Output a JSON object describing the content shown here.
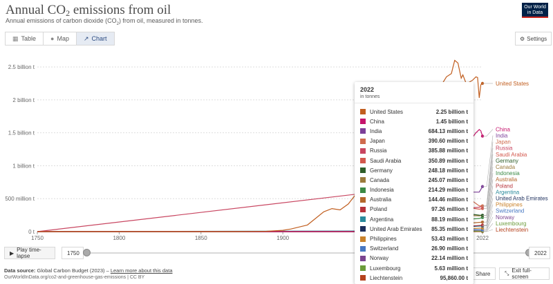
{
  "header": {
    "title_pre": "Annual CO",
    "title_sub": "2",
    "title_post": " emissions from oil",
    "subtitle_pre": "Annual emissions of carbon dioxide (CO",
    "subtitle_sub": "2",
    "subtitle_post": ") from oil, measured in tonnes.",
    "logo_line1": "Our World",
    "logo_line2": "in Data"
  },
  "tabs": [
    {
      "label": "Table",
      "icon": "table-icon"
    },
    {
      "label": "Map",
      "icon": "globe-icon"
    },
    {
      "label": "Chart",
      "icon": "line-chart-icon"
    }
  ],
  "settings_label": "Settings",
  "timeline": {
    "play_label": "Play time-lapse",
    "start_year": "1750",
    "end_year": "2022",
    "start_fraction": 0,
    "end_fraction": 1
  },
  "footer": {
    "source_bold": "Data source:",
    "source_text": " Global Carbon Budget (2023) – ",
    "source_link": "Learn more about this data",
    "url_line": "OurWorldInData.org/co2-and-greenhouse-gas-emissions | CC BY",
    "share_label": "Share",
    "exit_label": "Exit full-screen"
  },
  "tooltip": {
    "year": "2022",
    "unit": "in tonnes",
    "rows": [
      {
        "name": "United States",
        "value": "2.25 billion t",
        "color": "#c15e1f"
      },
      {
        "name": "China",
        "value": "1.45 billion t",
        "color": "#c5146c"
      },
      {
        "name": "India",
        "value": "684.13 million t",
        "color": "#7c3f98"
      },
      {
        "name": "Japan",
        "value": "390.60 million t",
        "color": "#cf6a4d"
      },
      {
        "name": "Russia",
        "value": "385.88 million t",
        "color": "#c84560"
      },
      {
        "name": "Saudi Arabia",
        "value": "350.89 million t",
        "color": "#d3584d"
      },
      {
        "name": "Germany",
        "value": "248.18 million t",
        "color": "#2f5e2a"
      },
      {
        "name": "Canada",
        "value": "245.07 million t",
        "color": "#9b7b3c"
      },
      {
        "name": "Indonesia",
        "value": "214.29 million t",
        "color": "#3b8a45"
      },
      {
        "name": "Australia",
        "value": "144.46 million t",
        "color": "#b4672c"
      },
      {
        "name": "Poland",
        "value": "97.26 million t",
        "color": "#b7333a"
      },
      {
        "name": "Argentina",
        "value": "88.19 million t",
        "color": "#2a8a9c"
      },
      {
        "name": "United Arab Emirates",
        "value": "85.35 million t",
        "color": "#1c2e5c"
      },
      {
        "name": "Philippines",
        "value": "53.43 million t",
        "color": "#c9822b"
      },
      {
        "name": "Switzerland",
        "value": "26.90 million t",
        "color": "#4777c2"
      },
      {
        "name": "Norway",
        "value": "22.14 million t",
        "color": "#7b4590"
      },
      {
        "name": "Luxembourg",
        "value": "5.63 million t",
        "color": "#6b9b3a"
      },
      {
        "name": "Liechtenstein",
        "value": "95,860.00 t",
        "color": "#b5421d"
      }
    ]
  },
  "chart_data": {
    "type": "line",
    "xlim": [
      1750,
      2022
    ],
    "ylim": [
      0,
      2700000000
    ],
    "x_ticks": [
      1750,
      1800,
      1850,
      1900,
      2022
    ],
    "x_tick_labels": [
      "1750",
      "1800",
      "1850",
      "1900",
      "2022"
    ],
    "y_ticks": [
      0,
      500000000,
      1000000000,
      1500000000,
      2000000000,
      2500000000
    ],
    "y_tick_labels": [
      "0 t",
      "500 million t",
      "1 billion t",
      "1.5 billion t",
      "2 billion t",
      "2.5 billion t"
    ],
    "grid": true,
    "series": [
      {
        "name": "United States",
        "color": "#c15e1f",
        "label_color": "#c15e1f",
        "x": [
          1750,
          1860,
          1870,
          1880,
          1890,
          1900,
          1905,
          1910,
          1915,
          1920,
          1925,
          1930,
          1935,
          1940,
          1945,
          1948,
          1950,
          1953,
          1955,
          1958,
          1960,
          1963,
          1965,
          1968,
          1970,
          1973,
          1975,
          1978,
          1980,
          1982,
          1985,
          1988,
          1990,
          1993,
          1995,
          1998,
          2000,
          2003,
          2005,
          2007,
          2009,
          2010,
          2012,
          2014,
          2016,
          2018,
          2019,
          2020,
          2021,
          2022
        ],
        "y": [
          0,
          0,
          0,
          2000000,
          5000000,
          20000000,
          40000000,
          70000000,
          100000000,
          200000000,
          300000000,
          350000000,
          330000000,
          420000000,
          580000000,
          700000000,
          740000000,
          850000000,
          930000000,
          1010000000,
          1080000000,
          1170000000,
          1260000000,
          1420000000,
          1540000000,
          1750000000,
          1700000000,
          1900000000,
          1850000000,
          1680000000,
          1720000000,
          1900000000,
          2050000000,
          2100000000,
          2150000000,
          2270000000,
          2350000000,
          2400000000,
          2600000000,
          2560000000,
          2330000000,
          2380000000,
          2250000000,
          2270000000,
          2300000000,
          2350000000,
          2340000000,
          2030000000,
          2230000000,
          2250000000
        ]
      },
      {
        "name": "China",
        "color": "#c5146c",
        "label_color": "#c5146c",
        "x": [
          1750,
          1950,
          1960,
          1970,
          1975,
          1980,
          1985,
          1990,
          1995,
          2000,
          2005,
          2010,
          2015,
          2018,
          2020,
          2021,
          2022
        ],
        "y": [
          0,
          0,
          5000000,
          30000000,
          100000000,
          200000000,
          220000000,
          250000000,
          400000000,
          600000000,
          820000000,
          1150000000,
          1400000000,
          1500000000,
          1550000000,
          1530000000,
          1450000000
        ]
      },
      {
        "name": "India",
        "color": "#7c3f98",
        "label_color": "#7c3f98",
        "x": [
          1750,
          1950,
          1970,
          1980,
          1990,
          2000,
          2010,
          2015,
          2020,
          2021,
          2022
        ],
        "y": [
          0,
          0,
          40000000,
          80000000,
          150000000,
          300000000,
          450000000,
          600000000,
          600000000,
          640000000,
          684130000
        ]
      },
      {
        "name": "Japan",
        "color": "#cf6a4d",
        "label_color": "#cf6a4d",
        "x": [
          1750,
          1950,
          1960,
          1965,
          1970,
          1973,
          1980,
          1990,
          2000,
          2005,
          2010,
          2015,
          2020,
          2022
        ],
        "y": [
          0,
          0,
          100000000,
          250000000,
          500000000,
          620000000,
          560000000,
          600000000,
          660000000,
          640000000,
          560000000,
          480000000,
          390000000,
          390600000
        ]
      },
      {
        "name": "Russia",
        "color": "#c84560",
        "label_color": "#c84560",
        "x": [
          1750,
          1990,
          1993,
          1998,
          2005,
          2010,
          2015,
          2020,
          2022
        ],
        "y": [
          0,
          700000000,
          450000000,
          320000000,
          330000000,
          340000000,
          360000000,
          370000000,
          385880000
        ]
      },
      {
        "name": "Saudi Arabia",
        "color": "#d3584d",
        "label_color": "#d3584d",
        "x": [
          1750,
          1950,
          1970,
          1980,
          1990,
          2000,
          2010,
          2015,
          2020,
          2022
        ],
        "y": [
          0,
          0,
          20000000,
          80000000,
          130000000,
          180000000,
          300000000,
          360000000,
          340000000,
          350890000
        ]
      },
      {
        "name": "Germany",
        "color": "#2f5e2a",
        "label_color": "#2f5e2a",
        "x": [
          1750,
          1950,
          1960,
          1970,
          1980,
          1990,
          2000,
          2010,
          2020,
          2022
        ],
        "y": [
          0,
          0,
          100000000,
          330000000,
          400000000,
          320000000,
          310000000,
          280000000,
          250000000,
          248180000
        ]
      },
      {
        "name": "Canada",
        "color": "#9b7b3c",
        "label_color": "#9b7b3c",
        "x": [
          1750,
          1950,
          1960,
          1970,
          1980,
          1990,
          2000,
          2010,
          2020,
          2022
        ],
        "y": [
          0,
          0,
          100000000,
          160000000,
          210000000,
          200000000,
          230000000,
          250000000,
          240000000,
          245070000
        ]
      },
      {
        "name": "Indonesia",
        "color": "#3b8a45",
        "label_color": "#3b8a45",
        "x": [
          1750,
          1950,
          1970,
          1990,
          2000,
          2010,
          2020,
          2022
        ],
        "y": [
          0,
          0,
          20000000,
          80000000,
          150000000,
          180000000,
          200000000,
          214290000
        ]
      },
      {
        "name": "Australia",
        "color": "#b4672c",
        "label_color": "#b4672c",
        "x": [
          1750,
          1950,
          1970,
          1990,
          2010,
          2020,
          2022
        ],
        "y": [
          0,
          0,
          50000000,
          90000000,
          120000000,
          140000000,
          144460000
        ]
      },
      {
        "name": "Poland",
        "color": "#b7333a",
        "label_color": "#b7333a",
        "x": [
          1750,
          1950,
          1980,
          1990,
          2010,
          2022
        ],
        "y": [
          0,
          0,
          50000000,
          40000000,
          75000000,
          97260000
        ]
      },
      {
        "name": "Argentina",
        "color": "#2a8a9c",
        "label_color": "#2a8a9c",
        "x": [
          1750,
          1950,
          1980,
          2000,
          2022
        ],
        "y": [
          0,
          10000000,
          60000000,
          70000000,
          88190000
        ]
      },
      {
        "name": "United Arab Emirates",
        "color": "#1c2e5c",
        "label_color": "#1c2e5c",
        "x": [
          1750,
          1970,
          1990,
          2010,
          2022
        ],
        "y": [
          0,
          0,
          30000000,
          70000000,
          85350000
        ]
      },
      {
        "name": "Philippines",
        "color": "#c9822b",
        "label_color": "#c9822b",
        "x": [
          1750,
          1960,
          1990,
          2010,
          2022
        ],
        "y": [
          0,
          5000000,
          30000000,
          40000000,
          53430000
        ]
      },
      {
        "name": "Switzerland",
        "color": "#4777c2",
        "label_color": "#4777c2",
        "x": [
          1750,
          1950,
          1970,
          2000,
          2022
        ],
        "y": [
          0,
          0,
          40000000,
          35000000,
          26900000
        ]
      },
      {
        "name": "Norway",
        "color": "#7b4590",
        "label_color": "#7b4590",
        "x": [
          1750,
          1950,
          1970,
          2000,
          2022
        ],
        "y": [
          0,
          0,
          20000000,
          25000000,
          22140000
        ]
      },
      {
        "name": "Luxembourg",
        "color": "#6b9b3a",
        "label_color": "#6b9b3a",
        "x": [
          1750,
          1950,
          1990,
          2005,
          2022
        ],
        "y": [
          0,
          0,
          5000000,
          10000000,
          5630000
        ]
      },
      {
        "name": "Liechtenstein",
        "color": "#b5421d",
        "label_color": "#b5421d",
        "x": [
          1750,
          2022
        ],
        "y": [
          0,
          95860
        ]
      }
    ]
  }
}
